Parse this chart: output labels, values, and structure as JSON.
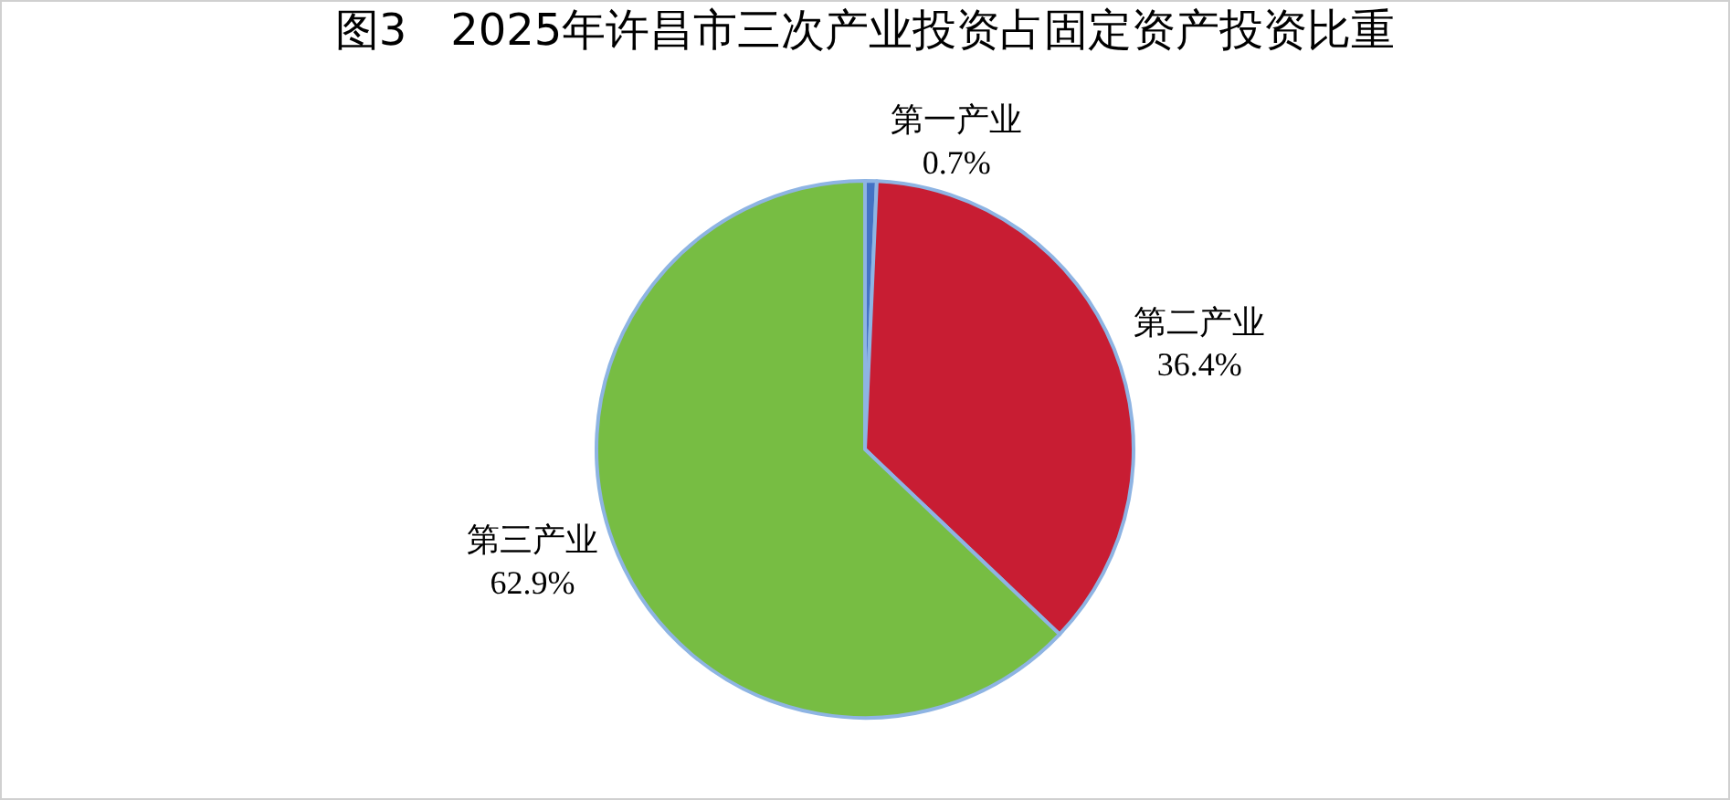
{
  "chart_data": {
    "type": "pie",
    "title": "图3　2025年许昌市三次产业投资占固定资产投资比重",
    "categories": [
      "第一产业",
      "第二产业",
      "第三产业"
    ],
    "values": [
      0.7,
      36.4,
      62.9
    ],
    "value_labels": [
      "0.7%",
      "36.4%",
      "62.9%"
    ],
    "colors": [
      "#4472c4",
      "#c81d33",
      "#77bd43"
    ]
  }
}
